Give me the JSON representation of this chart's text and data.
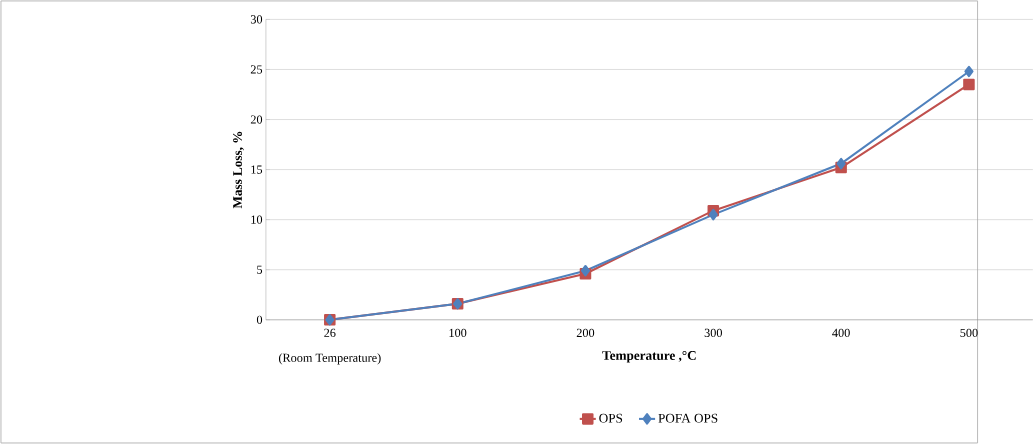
{
  "chart_data": {
    "type": "line",
    "categories": [
      "26",
      "100",
      "200",
      "300",
      "400",
      "500"
    ],
    "xlabel": "Temperature ,°C",
    "ylabel": "Mass Loss, %",
    "annotations": [
      "(Room Temperature)"
    ],
    "series": [
      {
        "name": "OPS",
        "color": "#c0504d",
        "marker": "square",
        "values": [
          0,
          1.6,
          4.6,
          10.9,
          15.2,
          23.5
        ]
      },
      {
        "name": "POFA OPS",
        "color": "#4f81bd",
        "marker": "diamond",
        "values": [
          0,
          1.6,
          4.9,
          10.5,
          15.6,
          24.8
        ]
      }
    ],
    "ylim": [
      0,
      30
    ],
    "yticks": [
      0,
      5,
      10,
      15,
      20,
      25,
      30
    ],
    "grid": "y",
    "legend": "bottom",
    "line_style": "solid"
  }
}
